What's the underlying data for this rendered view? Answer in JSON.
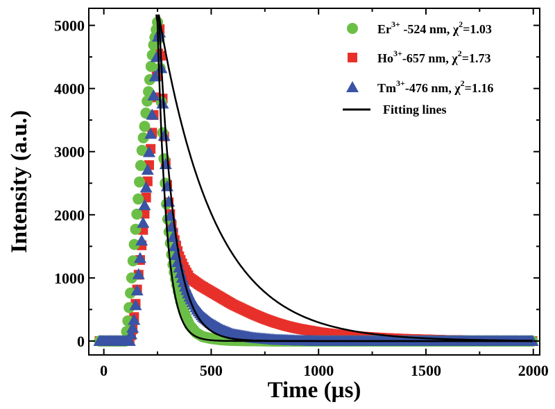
{
  "chart_data": {
    "type": "scatter",
    "title": "",
    "xlabel": "Time (µs)",
    "ylabel": "Intensity (a.u.)",
    "xlim": [
      -70,
      2030
    ],
    "ylim": [
      -220,
      5270
    ],
    "x_ticks": [
      0,
      500,
      1000,
      1500,
      2000
    ],
    "y_ticks": [
      0,
      1000,
      2000,
      3000,
      4000,
      5000
    ],
    "grid": false,
    "legend_position": "top-right",
    "series": [
      {
        "name": "Er3+ -524 nm, χ2=1.03",
        "legend": {
          "ion": "Er",
          "charge": "3+",
          "rest": " -524 nm, ",
          "chi": "χ",
          "chi_sup": "2",
          "chi_value": "=1.03"
        },
        "marker": "circle",
        "color": "#6bbf46",
        "rise_start": 100,
        "peak_time": 250,
        "peak_intensity": 5050,
        "decay_tau": 42,
        "points": [
          [
            -20,
            0
          ],
          [
            0,
            0
          ],
          [
            20,
            0
          ],
          [
            40,
            0
          ],
          [
            60,
            0
          ],
          [
            80,
            0
          ],
          [
            100,
            0
          ],
          [
            110,
            250
          ],
          [
            120,
            600
          ],
          [
            130,
            1000
          ],
          [
            140,
            1450
          ],
          [
            150,
            1850
          ],
          [
            160,
            2250
          ],
          [
            170,
            2700
          ],
          [
            180,
            3100
          ],
          [
            190,
            3400
          ],
          [
            200,
            3750
          ],
          [
            210,
            4000
          ],
          [
            220,
            4350
          ],
          [
            230,
            4650
          ],
          [
            240,
            4850
          ],
          [
            250,
            5050
          ],
          [
            258,
            4700
          ],
          [
            266,
            3950
          ],
          [
            274,
            3300
          ],
          [
            282,
            2750
          ],
          [
            290,
            2250
          ],
          [
            300,
            1850
          ],
          [
            310,
            1550
          ],
          [
            320,
            1250
          ],
          [
            330,
            1050
          ],
          [
            345,
            800
          ],
          [
            360,
            600
          ],
          [
            380,
            400
          ],
          [
            400,
            250
          ],
          [
            430,
            130
          ],
          [
            460,
            70
          ],
          [
            500,
            40
          ],
          [
            550,
            20
          ],
          [
            600,
            10
          ],
          [
            700,
            5
          ],
          [
            800,
            0
          ],
          [
            1000,
            0
          ],
          [
            1200,
            0
          ],
          [
            1400,
            0
          ],
          [
            1600,
            0
          ],
          [
            1800,
            0
          ],
          [
            2000,
            0
          ]
        ]
      },
      {
        "name": "Ho3+-657 nm, χ2=1.73",
        "legend": {
          "ion": "Ho",
          "charge": "3+",
          "rest": "-657 nm, ",
          "chi": "χ",
          "chi_sup": "2",
          "chi_value": "=1.73"
        },
        "marker": "square",
        "color": "#e8302a",
        "rise_start": 130,
        "peak_time": 262,
        "peak_intensity": 5050,
        "decay_tau": 260,
        "points": [
          [
            -20,
            0
          ],
          [
            0,
            0
          ],
          [
            20,
            0
          ],
          [
            40,
            0
          ],
          [
            60,
            0
          ],
          [
            80,
            0
          ],
          [
            100,
            0
          ],
          [
            120,
            0
          ],
          [
            135,
            200
          ],
          [
            150,
            650
          ],
          [
            165,
            1150
          ],
          [
            180,
            1650
          ],
          [
            195,
            2200
          ],
          [
            210,
            2750
          ],
          [
            225,
            3300
          ],
          [
            240,
            3900
          ],
          [
            252,
            4500
          ],
          [
            262,
            5050
          ],
          [
            270,
            4200
          ],
          [
            280,
            3300
          ],
          [
            290,
            2700
          ],
          [
            300,
            2250
          ],
          [
            315,
            1850
          ],
          [
            330,
            1600
          ],
          [
            350,
            1350
          ],
          [
            375,
            1150
          ],
          [
            400,
            1000
          ],
          [
            450,
            880
          ],
          [
            500,
            780
          ],
          [
            550,
            680
          ],
          [
            600,
            580
          ],
          [
            650,
            500
          ],
          [
            700,
            420
          ],
          [
            750,
            350
          ],
          [
            800,
            290
          ],
          [
            850,
            240
          ],
          [
            900,
            200
          ],
          [
            950,
            170
          ],
          [
            1000,
            140
          ],
          [
            1100,
            100
          ],
          [
            1200,
            70
          ],
          [
            1300,
            50
          ],
          [
            1400,
            35
          ],
          [
            1500,
            25
          ],
          [
            1600,
            15
          ],
          [
            1700,
            10
          ],
          [
            1800,
            5
          ],
          [
            1900,
            0
          ],
          [
            2000,
            0
          ]
        ]
      },
      {
        "name": "Tm3+-476 nm, χ2=1.16",
        "legend": {
          "ion": "Tm",
          "charge": "3+",
          "rest": "-476 nm, ",
          "chi": "χ",
          "chi_sup": "2",
          "chi_value": "=1.16"
        },
        "marker": "triangle",
        "color": "#3a53a4",
        "rise_start": 130,
        "peak_time": 258,
        "peak_intensity": 5050,
        "decay_tau": 70,
        "points": [
          [
            -20,
            0
          ],
          [
            0,
            0
          ],
          [
            20,
            0
          ],
          [
            40,
            0
          ],
          [
            60,
            0
          ],
          [
            80,
            0
          ],
          [
            100,
            0
          ],
          [
            120,
            0
          ],
          [
            140,
            300
          ],
          [
            155,
            800
          ],
          [
            170,
            1350
          ],
          [
            185,
            1950
          ],
          [
            200,
            2550
          ],
          [
            215,
            3150
          ],
          [
            230,
            3800
          ],
          [
            245,
            4450
          ],
          [
            258,
            5050
          ],
          [
            266,
            4400
          ],
          [
            276,
            3600
          ],
          [
            286,
            2900
          ],
          [
            296,
            2400
          ],
          [
            310,
            1950
          ],
          [
            325,
            1600
          ],
          [
            340,
            1300
          ],
          [
            360,
            1050
          ],
          [
            380,
            850
          ],
          [
            400,
            700
          ],
          [
            430,
            520
          ],
          [
            460,
            390
          ],
          [
            500,
            280
          ],
          [
            550,
            180
          ],
          [
            600,
            110
          ],
          [
            700,
            50
          ],
          [
            800,
            20
          ],
          [
            900,
            8
          ],
          [
            1000,
            0
          ],
          [
            1200,
            0
          ],
          [
            1400,
            0
          ],
          [
            1600,
            0
          ],
          [
            1800,
            0
          ],
          [
            2000,
            0
          ]
        ]
      },
      {
        "name": "Fitting lines",
        "marker": "line",
        "color": "#000000"
      }
    ]
  }
}
